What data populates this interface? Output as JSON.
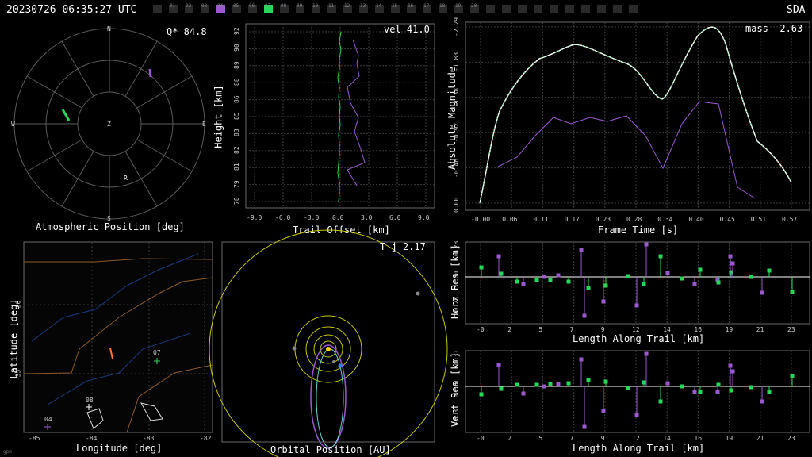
{
  "header": {
    "timestamp": "20230726 06:35:27 UTC",
    "network": "SDA",
    "cameras": [
      "",
      "01",
      "02",
      "03",
      "04",
      "05",
      "06",
      "07",
      "08",
      "09",
      "10",
      "11",
      "12",
      "13",
      "14",
      "15",
      "16",
      "17",
      "18",
      "19",
      "20",
      "",
      "",
      "",
      "",
      "",
      "",
      "",
      "",
      "",
      ""
    ],
    "active_violet": "04",
    "active_green": "07"
  },
  "polar": {
    "quality_label": "Q* 84.8",
    "title": "Atmospheric Position [deg]",
    "dirs": {
      "n": "N",
      "s": "S",
      "e": "E",
      "w": "W",
      "z": "Z"
    },
    "r_marker": "R"
  },
  "trail": {
    "vel_label": "vel 41.0",
    "ylabel": "Height [km]",
    "xlabel": "Trail Offset [km]",
    "yticks": [
      "92",
      "90",
      "89",
      "88",
      "86",
      "85",
      "83",
      "82",
      "81",
      "79",
      "78"
    ],
    "xticks": [
      "-9.0",
      "-6.0",
      "-3.0",
      "0.0",
      "3.0",
      "6.0",
      "9.0"
    ]
  },
  "magnitude": {
    "mass_label": "mass -2.63",
    "ylabel": "Absolute Magnitude",
    "xlabel": "Frame Time [s]",
    "yticks": [
      "-2.29",
      "-1.83",
      "-1.38",
      "-0.92",
      "-0.46",
      "0.00"
    ],
    "xticks": [
      "-0.00",
      "0.06",
      "0.11",
      "0.17",
      "0.23",
      "0.28",
      "0.34",
      "0.40",
      "0.45",
      "0.51",
      "0.57"
    ]
  },
  "map": {
    "ylabel": "Latitude [deg]",
    "xlabel": "Longitude [deg]",
    "yticks": [
      "36",
      "35"
    ],
    "xticks": [
      "-85",
      "-84",
      "-83",
      "-82"
    ],
    "stations": [
      "07",
      "08",
      "04"
    ]
  },
  "orbit": {
    "tj_label": "T_j 2.17",
    "xlabel": "Orbital Position [AU]"
  },
  "horz": {
    "ylabel": "Horz Res [km]",
    "xlabel": "Length Along Trail [km]",
    "yticks": [
      "0.28",
      "0.00",
      "-0.28"
    ],
    "xticks": [
      "-0",
      "2",
      "5",
      "7",
      "9",
      "12",
      "14",
      "16",
      "19",
      "21",
      "23"
    ]
  },
  "vert": {
    "ylabel": "Vert Res [km]",
    "xlabel": "Length Along Trail [km]",
    "yticks": [
      "0.31",
      "0.00",
      "-0.31"
    ],
    "xticks": [
      "-0",
      "2",
      "5",
      "7",
      "9",
      "12",
      "14",
      "16",
      "19",
      "21",
      "23"
    ]
  },
  "footer": {
    "mark": "gpm"
  },
  "colors": {
    "violet": "#9b59d0",
    "green": "#27d65a",
    "fit": "#ffffff",
    "grid": "#4a4a4a",
    "map_border": "#8b5a2b",
    "map_water": "#1a3a7a",
    "orbit": "#c8c800"
  }
}
